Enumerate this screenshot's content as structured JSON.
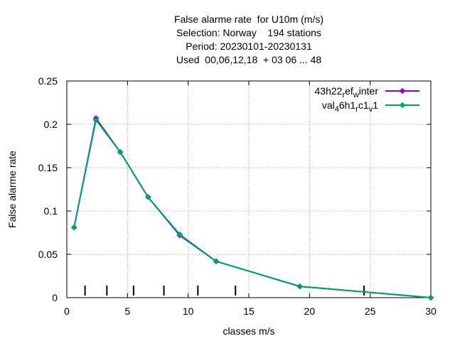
{
  "chart_data": {
    "type": "line",
    "title_lines": [
      "False alarme rate  for U10m (m/s)",
      "Selection: Norway    194 stations",
      "Period: 20230101-20230131",
      "Used  00,06,12,18  + 03 06 ... 48"
    ],
    "xlabel": "classes m/s",
    "ylabel": "False alarme rate",
    "xlim": [
      0,
      30
    ],
    "ylim": [
      0,
      0.25
    ],
    "x_ticks": [
      0,
      5,
      10,
      15,
      20,
      25,
      30
    ],
    "x_tick_labels": [
      "0",
      "5",
      "10",
      "15",
      "20",
      "25",
      "30"
    ],
    "y_ticks": [
      0,
      0.05,
      0.1,
      0.15,
      0.2,
      0.25
    ],
    "y_tick_labels": [
      "0",
      "0.05",
      "0.1",
      "0.15",
      "0.2",
      "0.25"
    ],
    "grid": true,
    "legend_position": "top-right",
    "class_markers": [
      1.5,
      3.3,
      5.5,
      8.0,
      10.8,
      13.9,
      24.5
    ],
    "series": [
      {
        "name": "43h22_ref_winter",
        "legend_parts": [
          [
            "43h22",
            "",
            "normal"
          ],
          [
            "r",
            "",
            "sub"
          ],
          [
            "ef",
            "",
            "normal"
          ],
          [
            "w",
            "",
            "sub"
          ],
          [
            "inter",
            "",
            "normal"
          ]
        ],
        "color": "#9400d3",
        "x": [
          0.6,
          2.4,
          4.4,
          6.7,
          9.3,
          12.3,
          19.2,
          30.0
        ],
        "values": [
          0.081,
          0.207,
          0.168,
          0.116,
          0.072,
          0.042,
          0.013,
          0.0
        ]
      },
      {
        "name": "val_46h1_rc1_v1",
        "legend_parts": [
          [
            "val",
            "",
            "normal"
          ],
          [
            "4",
            "",
            "sub"
          ],
          [
            "6h1",
            "",
            "normal"
          ],
          [
            "r",
            "",
            "sub"
          ],
          [
            "c1",
            "",
            "normal"
          ],
          [
            "v",
            "",
            "sub"
          ],
          [
            "1",
            "",
            "normal"
          ]
        ],
        "color": "#009e73",
        "x": [
          0.6,
          2.4,
          4.4,
          6.7,
          9.3,
          12.3,
          19.2,
          30.0
        ],
        "values": [
          0.081,
          0.205,
          0.168,
          0.116,
          0.073,
          0.042,
          0.013,
          0.0
        ]
      }
    ]
  }
}
